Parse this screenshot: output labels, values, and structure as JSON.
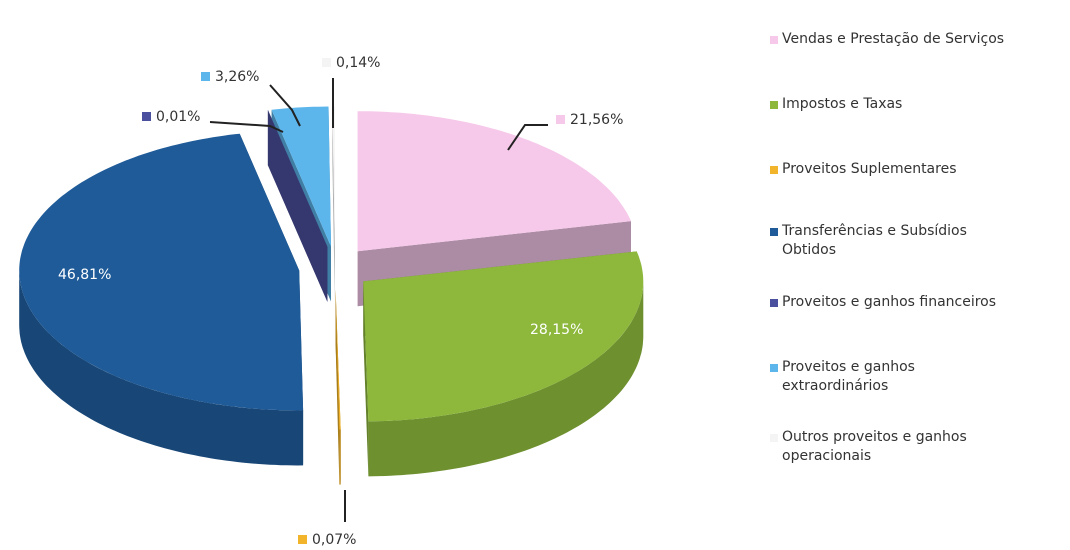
{
  "chart_data": {
    "type": "pie3d",
    "categories": [
      "Vendas e Prestação de Serviços",
      "Impostos e Taxas",
      "Proveitos Suplementares",
      "Transferências e Subsídios Obtidos",
      "Proveitos e ganhos financeiros",
      "Proveitos e ganhos extraordinários",
      "Outros proveitos e ganhos operacionais"
    ],
    "values": [
      21.56,
      28.15,
      0.07,
      46.81,
      0.01,
      3.26,
      0.14
    ],
    "value_labels": [
      "21,56%",
      "28,15%",
      "0,07%",
      "46,81%",
      "0,01%",
      "3,26%",
      "0,14%"
    ],
    "colors": [
      "#f6c8ea",
      "#8db83c",
      "#f2b42a",
      "#1f5b98",
      "#4b509e",
      "#5cb6ec",
      "#f4f4f4"
    ],
    "legend": "right"
  }
}
